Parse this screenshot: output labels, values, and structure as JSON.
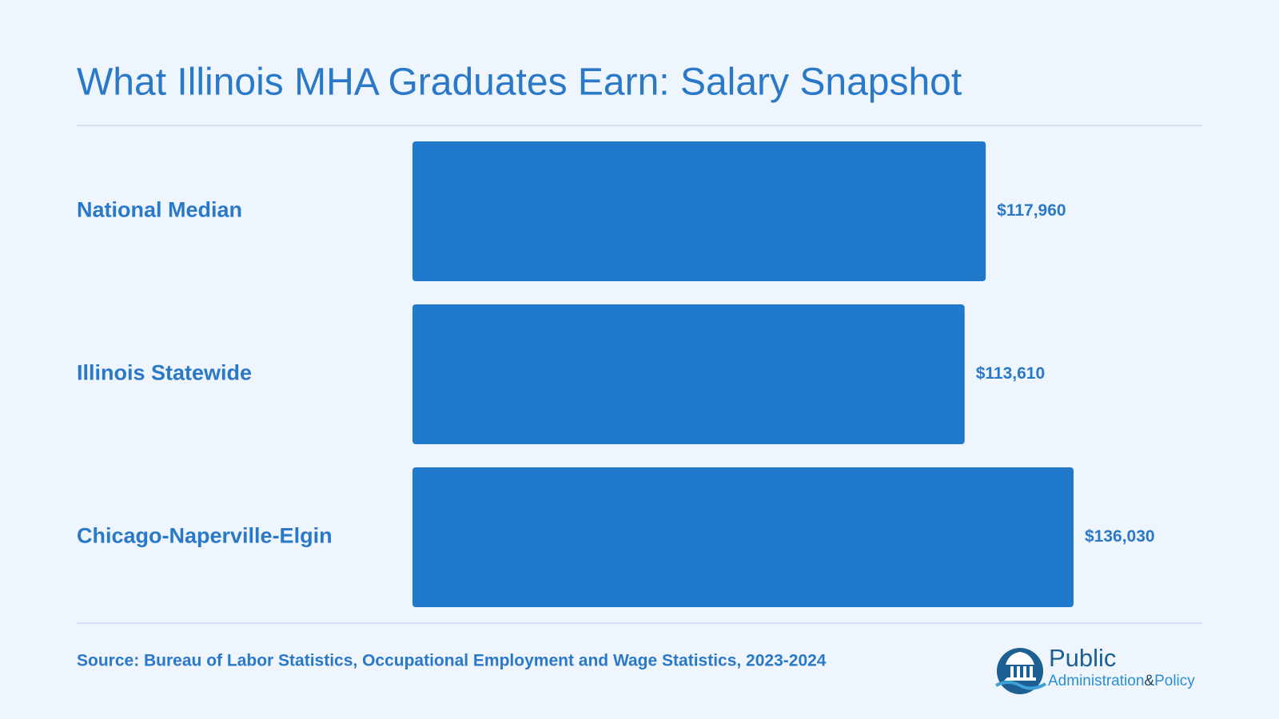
{
  "chart_data": {
    "type": "bar",
    "orientation": "horizontal",
    "title": "What Illinois MHA Graduates Earn: Salary Snapshot",
    "categories": [
      "National Median",
      "Illinois Statewide",
      "Chicago-Naperville-Elgin"
    ],
    "values": [
      117960,
      113610,
      136030
    ],
    "value_labels": [
      "$117,960",
      "$113,610",
      "$136,030"
    ],
    "color": "#2179cc",
    "source": "Source: Bureau of Labor Statistics, Occupational Employment and Wage Statistics, 2023-2024"
  },
  "logo": {
    "name": "Public",
    "tagline_1": "Administration",
    "tagline_amp": "&",
    "tagline_2": "Policy"
  }
}
